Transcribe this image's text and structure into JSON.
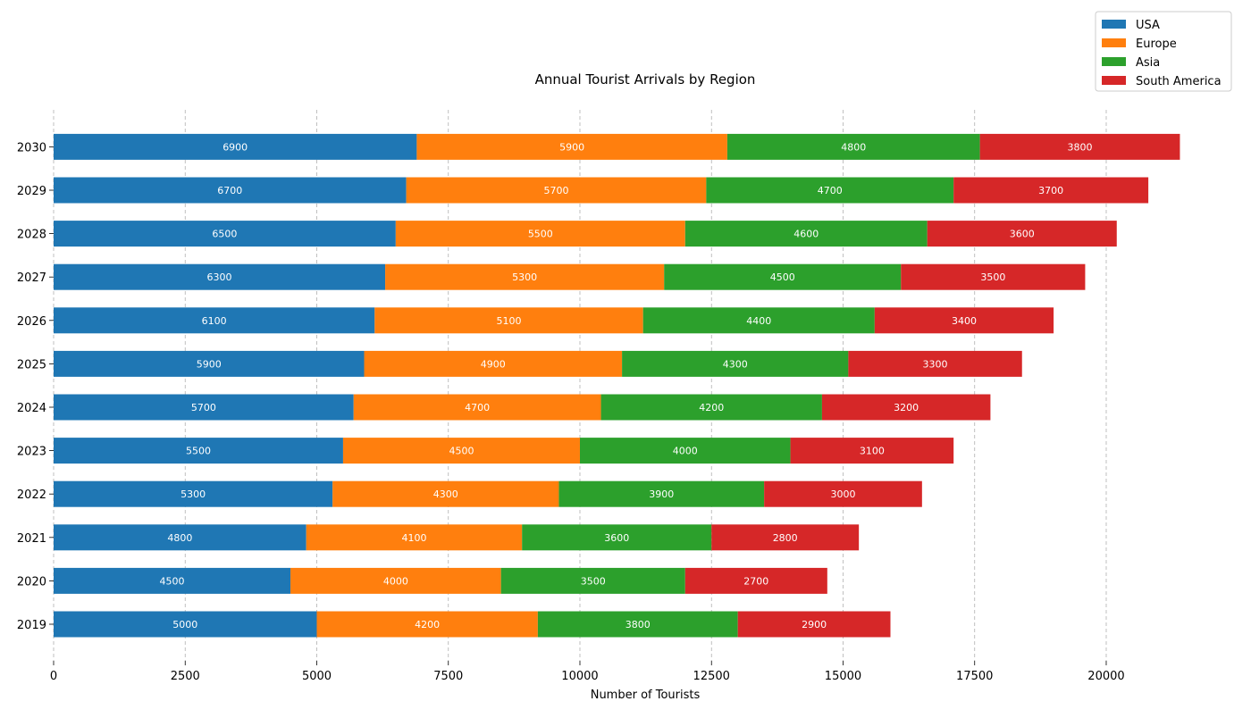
{
  "chart_data": {
    "type": "bar",
    "orientation": "horizontal",
    "stacked": true,
    "title": "Annual Tourist Arrivals by Region",
    "xlabel": "Number of Tourists",
    "ylabel": "",
    "xlim": [
      0,
      21800
    ],
    "xticks": [
      0,
      2500,
      5000,
      7500,
      10000,
      12500,
      15000,
      17500,
      20000
    ],
    "grid": "x-dashed",
    "legend": "top-right",
    "categories": [
      "2019",
      "2020",
      "2021",
      "2022",
      "2023",
      "2024",
      "2025",
      "2026",
      "2027",
      "2028",
      "2029",
      "2030"
    ],
    "series": [
      {
        "name": "USA",
        "color": "#1f77b4",
        "values": [
          5000,
          4500,
          4800,
          5300,
          5500,
          5700,
          5900,
          6100,
          6300,
          6500,
          6700,
          6900
        ]
      },
      {
        "name": "Europe",
        "color": "#ff7f0e",
        "values": [
          4200,
          4000,
          4100,
          4300,
          4500,
          4700,
          4900,
          5100,
          5300,
          5500,
          5700,
          5900
        ]
      },
      {
        "name": "Asia",
        "color": "#2ca02c",
        "values": [
          3800,
          3500,
          3600,
          3900,
          4000,
          4200,
          4300,
          4400,
          4500,
          4600,
          4700,
          4800
        ]
      },
      {
        "name": "South America",
        "color": "#d62728",
        "values": [
          2900,
          2700,
          2800,
          3000,
          3100,
          3200,
          3300,
          3400,
          3500,
          3600,
          3700,
          3800
        ]
      }
    ]
  }
}
